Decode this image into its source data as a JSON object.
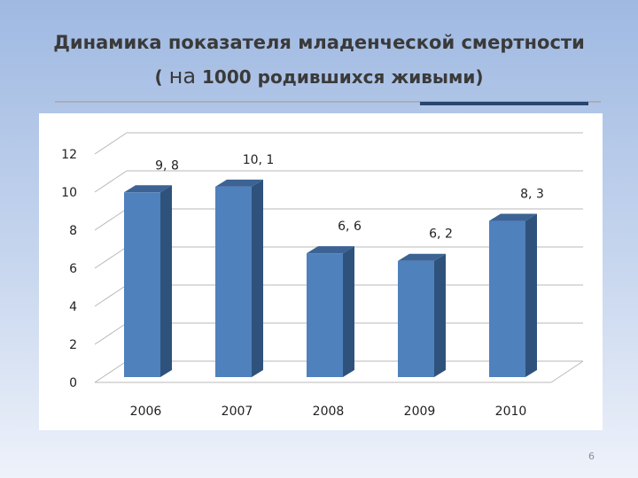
{
  "slide": {
    "title_line1": "Динамика показателя младенческой смертности",
    "title_line2_prefix": "( ",
    "title_line2_big": "на",
    "title_line2_rest": " 1000 родившихся живыми)",
    "page_number": "6"
  },
  "colors": {
    "bar_front": "#4f81bd",
    "bar_side": "#2f527c",
    "bar_top": "#3c6394",
    "grid": "#b9b9b9",
    "text": "#222222"
  },
  "chart_data": {
    "type": "bar",
    "title": "Динамика показателя младенческой смертности ( на 1000 родившихся живыми)",
    "categories": [
      "2006",
      "2007",
      "2008",
      "2009",
      "2010"
    ],
    "values": [
      9.8,
      10.1,
      6.6,
      6.2,
      8.3
    ],
    "data_labels": [
      "9, 8",
      "10, 1",
      "6, 6",
      "6, 2",
      "8, 3"
    ],
    "yticks": [
      "0",
      "2",
      "4",
      "6",
      "8",
      "10",
      "12"
    ],
    "ylim": [
      0,
      12
    ],
    "xlabel": "",
    "ylabel": "",
    "grid": true,
    "legend": "none",
    "style": "3d-column"
  }
}
